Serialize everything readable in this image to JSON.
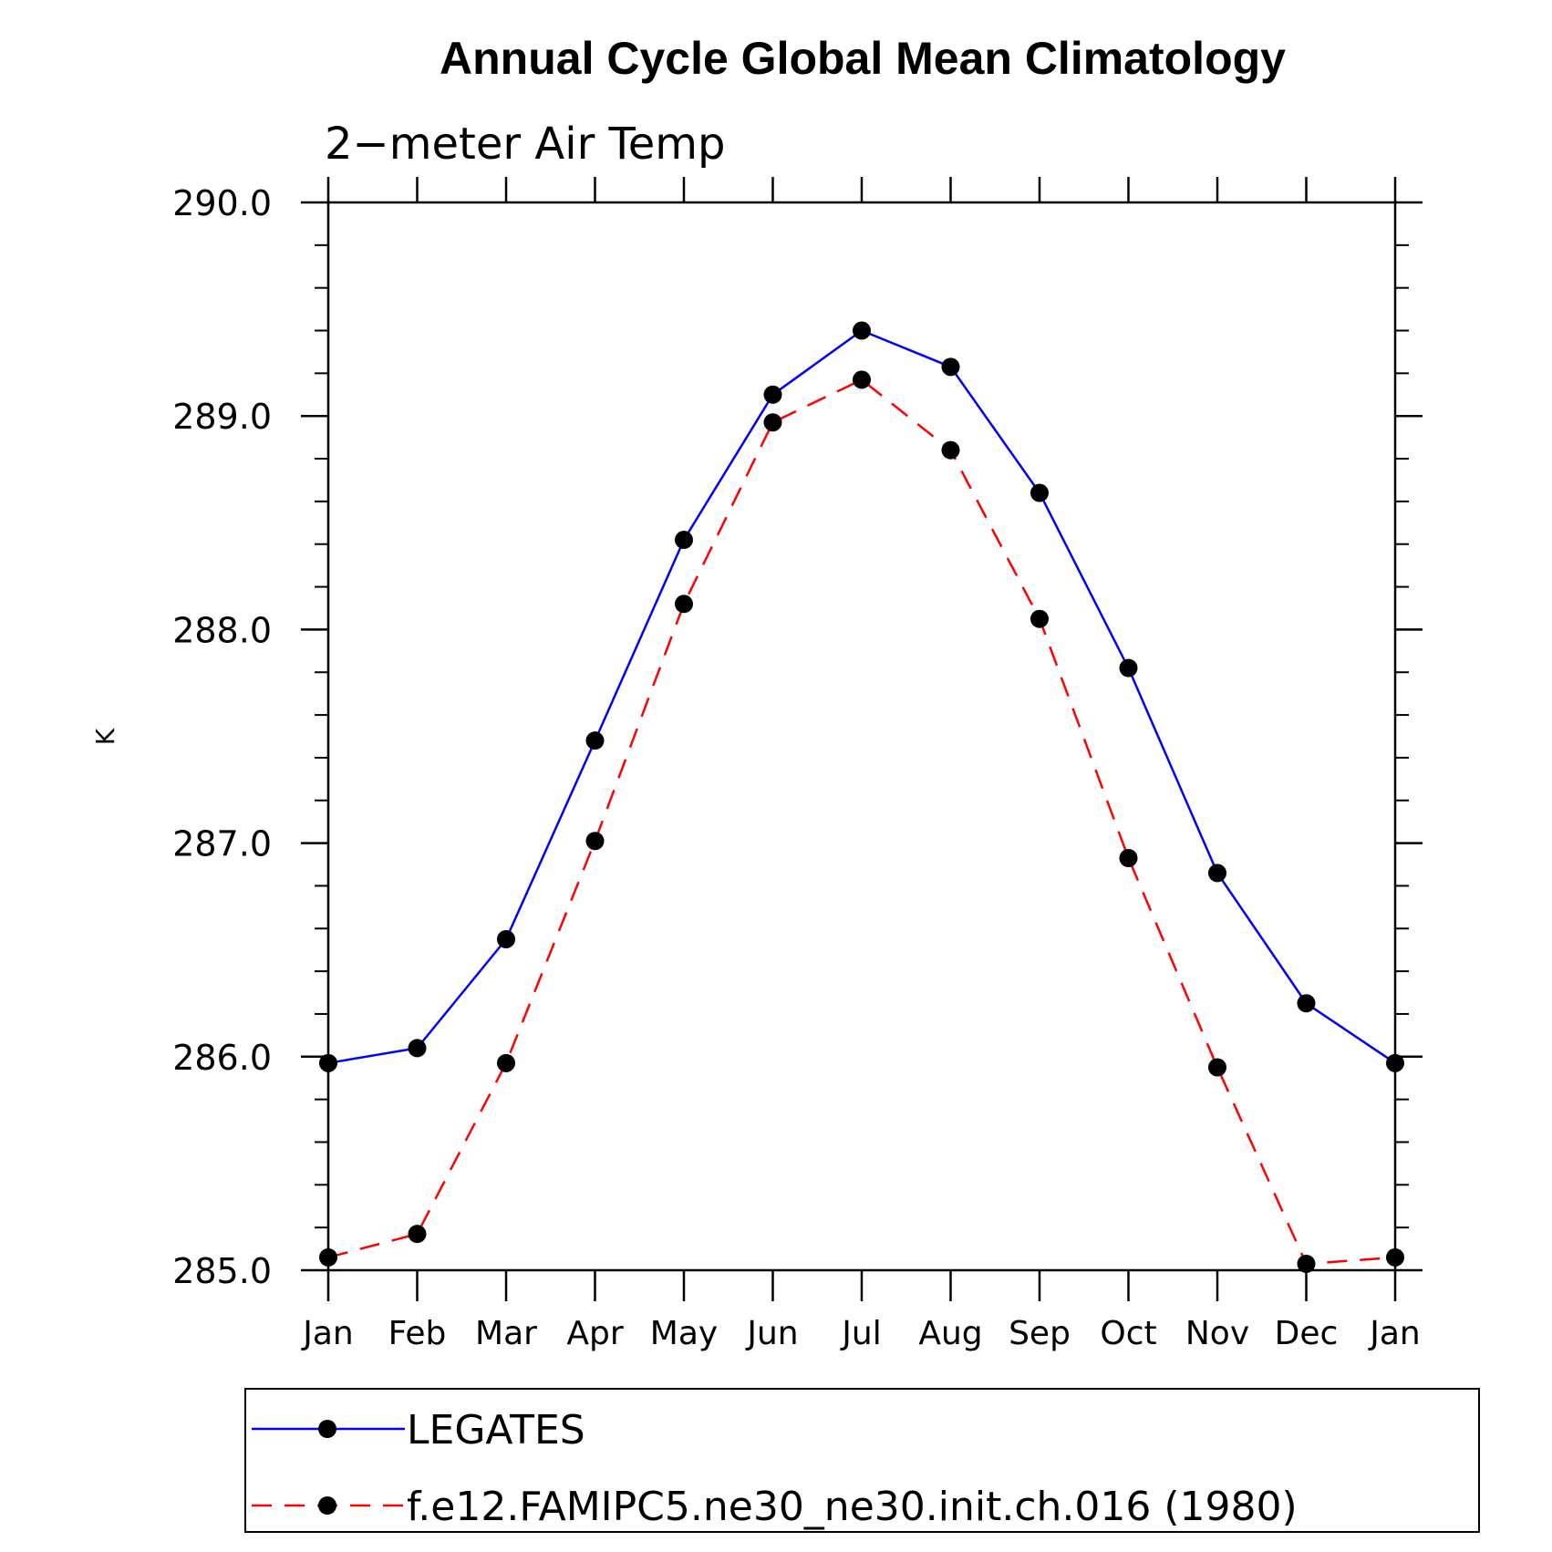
{
  "chart_data": {
    "type": "line",
    "title": "Annual Cycle Global Mean Climatology",
    "subtitle": "2−meter Air Temp",
    "ylabel": "K",
    "xlabel": "",
    "categories": [
      "Jan",
      "Feb",
      "Mar",
      "Apr",
      "May",
      "Jun",
      "Jul",
      "Aug",
      "Sep",
      "Oct",
      "Nov",
      "Dec",
      "Jan"
    ],
    "ylim": [
      285.0,
      290.0
    ],
    "yticks": [
      "285.0",
      "286.0",
      "287.0",
      "288.0",
      "289.0",
      "290.0"
    ],
    "y_minor_step": 0.2,
    "grid": false,
    "legend": "bottom",
    "series": [
      {
        "name": "LEGATES",
        "color": "#0000ff",
        "dash": "solid",
        "marker": "filled-circle",
        "values": [
          285.97,
          286.04,
          286.55,
          287.48,
          288.42,
          289.1,
          289.4,
          289.23,
          288.64,
          287.82,
          286.86,
          286.25,
          285.97
        ]
      },
      {
        "name": "f.e12.FAMIPC5.ne30_ne30.init.ch.016 (1980)",
        "color": "#ff0000",
        "dash": "dashed",
        "marker": "filled-circle",
        "values": [
          285.06,
          285.17,
          285.97,
          287.01,
          288.12,
          288.97,
          289.17,
          288.84,
          288.05,
          286.93,
          285.95,
          285.03,
          285.06
        ]
      }
    ]
  }
}
